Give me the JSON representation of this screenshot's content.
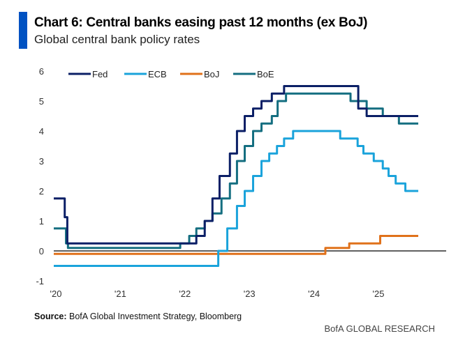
{
  "header": {
    "title": "Chart 6: Central banks easing past 12 months (ex BoJ)",
    "subtitle": "Global central bank policy rates"
  },
  "footer": {
    "source_label": "Source:",
    "source_text": " BofA Global Investment Strategy, Bloomberg",
    "brand": "BofA GLOBAL RESEARCH"
  },
  "colors": {
    "accent": "#0052c2",
    "Fed": "#0b1f66",
    "ECB": "#1aa3db",
    "BoJ": "#e0711a",
    "BoE": "#146e80"
  },
  "chart_data": {
    "type": "line",
    "step": true,
    "title": "Chart 6: Central banks easing past 12 months (ex BoJ)",
    "subtitle": "Global central bank policy rates",
    "xlabel": "",
    "ylabel": "",
    "ylim": [
      -1,
      6
    ],
    "yticks": [
      6,
      5,
      4,
      3,
      2,
      1,
      0,
      -1
    ],
    "xlim": [
      2020.0,
      2025.65
    ],
    "xticks": [
      {
        "value": 2020,
        "label": "'20"
      },
      {
        "value": 2021,
        "label": "'21"
      },
      {
        "value": 2022,
        "label": "'22"
      },
      {
        "value": 2023,
        "label": "'23"
      },
      {
        "value": 2024,
        "label": "'24"
      },
      {
        "value": 2025,
        "label": "'25"
      }
    ],
    "zero_line": true,
    "grid": false,
    "legend": {
      "placement": "top",
      "entries": [
        "Fed",
        "ECB",
        "BoJ",
        "BoE"
      ]
    },
    "series": [
      {
        "name": "Fed",
        "points": [
          [
            2020.0,
            1.75
          ],
          [
            2020.17,
            1.125
          ],
          [
            2020.21,
            0.25
          ],
          [
            2022.21,
            0.5
          ],
          [
            2022.34,
            1.0
          ],
          [
            2022.46,
            1.75
          ],
          [
            2022.57,
            2.5
          ],
          [
            2022.73,
            3.25
          ],
          [
            2022.84,
            4.0
          ],
          [
            2022.96,
            4.5
          ],
          [
            2023.09,
            4.75
          ],
          [
            2023.22,
            5.0
          ],
          [
            2023.38,
            5.25
          ],
          [
            2023.57,
            5.5
          ],
          [
            2024.72,
            4.75
          ],
          [
            2024.85,
            4.5
          ],
          [
            2024.96,
            4.5
          ],
          [
            2025.65,
            4.5
          ]
        ]
      },
      {
        "name": "ECB",
        "points": [
          [
            2020.0,
            -0.5
          ],
          [
            2022.55,
            0.0
          ],
          [
            2022.69,
            0.75
          ],
          [
            2022.84,
            1.5
          ],
          [
            2022.96,
            2.0
          ],
          [
            2023.09,
            2.5
          ],
          [
            2023.22,
            3.0
          ],
          [
            2023.34,
            3.25
          ],
          [
            2023.46,
            3.5
          ],
          [
            2023.57,
            3.75
          ],
          [
            2023.71,
            4.0
          ],
          [
            2024.44,
            3.75
          ],
          [
            2024.71,
            3.5
          ],
          [
            2024.8,
            3.25
          ],
          [
            2024.96,
            3.0
          ],
          [
            2025.1,
            2.75
          ],
          [
            2025.19,
            2.5
          ],
          [
            2025.3,
            2.25
          ],
          [
            2025.45,
            2.0
          ],
          [
            2025.65,
            2.0
          ]
        ]
      },
      {
        "name": "BoJ",
        "points": [
          [
            2020.0,
            -0.1
          ],
          [
            2024.21,
            0.1
          ],
          [
            2024.58,
            0.25
          ],
          [
            2025.06,
            0.5
          ],
          [
            2025.65,
            0.5
          ]
        ]
      },
      {
        "name": "BoE",
        "points": [
          [
            2020.0,
            0.75
          ],
          [
            2020.19,
            0.25
          ],
          [
            2020.22,
            0.1
          ],
          [
            2021.96,
            0.25
          ],
          [
            2022.1,
            0.5
          ],
          [
            2022.21,
            0.75
          ],
          [
            2022.34,
            1.0
          ],
          [
            2022.46,
            1.25
          ],
          [
            2022.6,
            1.75
          ],
          [
            2022.73,
            2.25
          ],
          [
            2022.84,
            3.0
          ],
          [
            2022.96,
            3.5
          ],
          [
            2023.09,
            4.0
          ],
          [
            2023.22,
            4.25
          ],
          [
            2023.38,
            4.5
          ],
          [
            2023.47,
            5.0
          ],
          [
            2023.6,
            5.25
          ],
          [
            2024.6,
            5.0
          ],
          [
            2024.85,
            4.75
          ],
          [
            2025.1,
            4.5
          ],
          [
            2025.35,
            4.25
          ],
          [
            2025.65,
            4.25
          ]
        ]
      }
    ]
  }
}
